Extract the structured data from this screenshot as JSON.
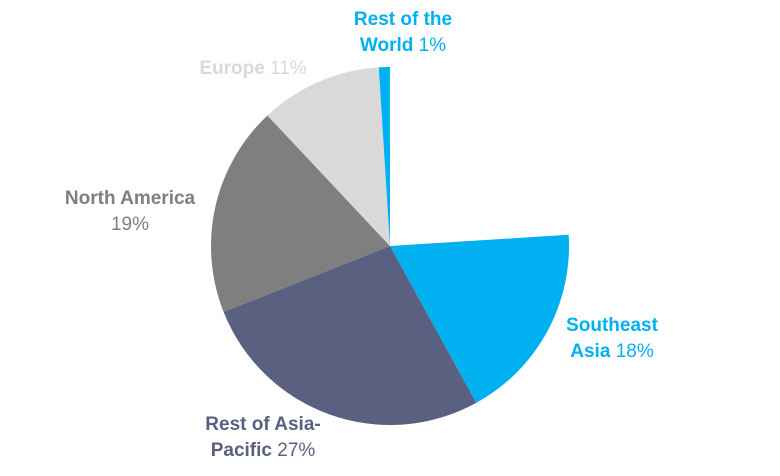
{
  "chart_data": {
    "type": "pie",
    "categories": [
      "Southeast Asia",
      "Rest of Asia-Pacific",
      "North America",
      "Europe",
      "Rest of the World"
    ],
    "values": [
      18,
      27,
      19,
      11,
      1
    ],
    "value_labels": [
      "18%",
      "27%",
      "19%",
      "11%",
      "1%"
    ],
    "colors": [
      "#00b0f0",
      "#596080",
      "#7f7f7f",
      "#d9d9d9",
      "#00b0f0"
    ]
  }
}
